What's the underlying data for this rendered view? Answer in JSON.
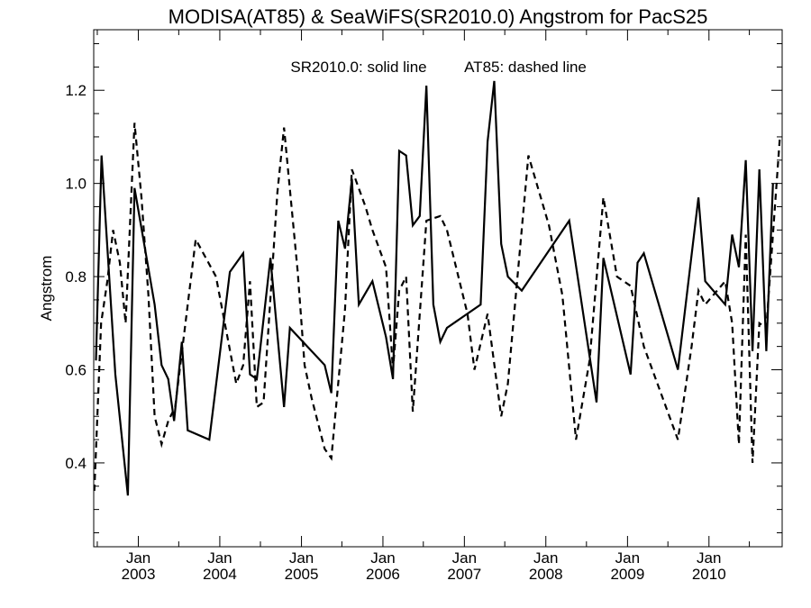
{
  "chart_data": {
    "type": "line",
    "title": "MODISA(AT85) & SeaWiFS(SR2010.0)  Angstrom for PacS25",
    "xlabel": "",
    "ylabel": "Angstrom",
    "annotation_solid": "SR2010.0: solid line",
    "annotation_dashed": "AT85: dashed line",
    "xlim": [
      "2002-06-15",
      "2010-11-25"
    ],
    "ylim": [
      0.22,
      1.33
    ],
    "grid": false,
    "x_ticks": [
      {
        "month": "Jan",
        "year": "2003",
        "date": "2003-01-01"
      },
      {
        "month": "Jan",
        "year": "2004",
        "date": "2004-01-01"
      },
      {
        "month": "Jan",
        "year": "2005",
        "date": "2005-01-01"
      },
      {
        "month": "Jan",
        "year": "2006",
        "date": "2006-01-01"
      },
      {
        "month": "Jan",
        "year": "2007",
        "date": "2007-01-01"
      },
      {
        "month": "Jan",
        "year": "2008",
        "date": "2008-01-01"
      },
      {
        "month": "Jan",
        "year": "2009",
        "date": "2009-01-01"
      },
      {
        "month": "Jan",
        "year": "2010",
        "date": "2010-01-01"
      }
    ],
    "y_ticks": [
      "0.4",
      "0.6",
      "0.8",
      "1.0",
      "1.2"
    ],
    "series": [
      {
        "name": "SR2010.0",
        "style": "solid",
        "points": [
          [
            "2002-06-25",
            0.62
          ],
          [
            "2002-07-20",
            1.06
          ],
          [
            "2002-09-20",
            0.59
          ],
          [
            "2002-11-15",
            0.33
          ],
          [
            "2002-12-15",
            0.99
          ],
          [
            "2003-03-15",
            0.74
          ],
          [
            "2003-04-15",
            0.61
          ],
          [
            "2003-05-15",
            0.58
          ],
          [
            "2003-06-10",
            0.49
          ],
          [
            "2003-07-15",
            0.66
          ],
          [
            "2003-08-10",
            0.47
          ],
          [
            "2003-11-15",
            0.45
          ],
          [
            "2004-02-15",
            0.81
          ],
          [
            "2004-04-15",
            0.85
          ],
          [
            "2004-05-15",
            0.59
          ],
          [
            "2004-06-15",
            0.58
          ],
          [
            "2004-08-15",
            0.84
          ],
          [
            "2004-10-15",
            0.52
          ],
          [
            "2004-11-10",
            0.69
          ],
          [
            "2005-04-15",
            0.61
          ],
          [
            "2005-05-15",
            0.55
          ],
          [
            "2005-06-15",
            0.92
          ],
          [
            "2005-07-15",
            0.86
          ],
          [
            "2005-08-15",
            1.01
          ],
          [
            "2005-09-15",
            0.74
          ],
          [
            "2005-11-15",
            0.79
          ],
          [
            "2006-01-15",
            0.67
          ],
          [
            "2006-02-15",
            0.58
          ],
          [
            "2006-03-15",
            1.07
          ],
          [
            "2006-04-15",
            1.06
          ],
          [
            "2006-05-15",
            0.91
          ],
          [
            "2006-06-15",
            0.93
          ],
          [
            "2006-07-15",
            1.21
          ],
          [
            "2006-08-15",
            0.74
          ],
          [
            "2006-09-15",
            0.66
          ],
          [
            "2006-10-15",
            0.69
          ],
          [
            "2007-03-15",
            0.74
          ],
          [
            "2007-04-15",
            1.09
          ],
          [
            "2007-05-15",
            1.22
          ],
          [
            "2007-06-15",
            0.87
          ],
          [
            "2007-07-15",
            0.8
          ],
          [
            "2007-09-15",
            0.77
          ],
          [
            "2008-04-15",
            0.92
          ],
          [
            "2008-08-15",
            0.53
          ],
          [
            "2008-09-15",
            0.84
          ],
          [
            "2009-01-15",
            0.59
          ],
          [
            "2009-02-15",
            0.83
          ],
          [
            "2009-03-15",
            0.85
          ],
          [
            "2009-08-15",
            0.6
          ],
          [
            "2009-11-15",
            0.97
          ],
          [
            "2009-12-15",
            0.79
          ],
          [
            "2010-03-15",
            0.74
          ],
          [
            "2010-04-15",
            0.89
          ],
          [
            "2010-05-15",
            0.82
          ],
          [
            "2010-06-15",
            1.05
          ],
          [
            "2010-07-15",
            0.64
          ],
          [
            "2010-08-15",
            1.03
          ],
          [
            "2010-09-15",
            0.64
          ],
          [
            "2010-10-15",
            1.0
          ]
        ]
      },
      {
        "name": "AT85",
        "style": "dashed",
        "points": [
          [
            "2002-06-18",
            0.34
          ],
          [
            "2002-07-18",
            0.7
          ],
          [
            "2002-08-15",
            0.79
          ],
          [
            "2002-09-10",
            0.9
          ],
          [
            "2002-10-10",
            0.83
          ],
          [
            "2002-11-05",
            0.7
          ],
          [
            "2002-12-15",
            1.13
          ],
          [
            "2003-01-15",
            0.97
          ],
          [
            "2003-02-15",
            0.76
          ],
          [
            "2003-03-15",
            0.5
          ],
          [
            "2003-04-15",
            0.44
          ],
          [
            "2003-05-15",
            0.49
          ],
          [
            "2003-06-15",
            0.52
          ],
          [
            "2003-09-15",
            0.88
          ],
          [
            "2003-12-15",
            0.8
          ],
          [
            "2004-03-15",
            0.57
          ],
          [
            "2004-04-15",
            0.61
          ],
          [
            "2004-05-15",
            0.79
          ],
          [
            "2004-06-15",
            0.52
          ],
          [
            "2004-07-15",
            0.53
          ],
          [
            "2004-09-15",
            0.98
          ],
          [
            "2004-10-15",
            1.12
          ],
          [
            "2004-12-15",
            0.81
          ],
          [
            "2005-01-15",
            0.61
          ],
          [
            "2005-02-15",
            0.54
          ],
          [
            "2005-04-15",
            0.43
          ],
          [
            "2005-05-15",
            0.41
          ],
          [
            "2005-07-15",
            0.73
          ],
          [
            "2005-08-15",
            1.03
          ],
          [
            "2005-10-15",
            0.95
          ],
          [
            "2005-11-15",
            0.9
          ],
          [
            "2006-01-15",
            0.82
          ],
          [
            "2006-02-15",
            0.6
          ],
          [
            "2006-03-15",
            0.77
          ],
          [
            "2006-04-15",
            0.8
          ],
          [
            "2006-05-15",
            0.51
          ],
          [
            "2006-07-15",
            0.92
          ],
          [
            "2006-09-15",
            0.93
          ],
          [
            "2006-10-15",
            0.9
          ],
          [
            "2007-01-15",
            0.72
          ],
          [
            "2007-02-15",
            0.6
          ],
          [
            "2007-04-15",
            0.72
          ],
          [
            "2007-06-15",
            0.5
          ],
          [
            "2007-07-15",
            0.57
          ],
          [
            "2007-10-15",
            1.06
          ],
          [
            "2008-01-15",
            0.91
          ],
          [
            "2008-03-15",
            0.76
          ],
          [
            "2008-05-15",
            0.45
          ],
          [
            "2008-07-15",
            0.62
          ],
          [
            "2008-09-15",
            0.97
          ],
          [
            "2008-11-15",
            0.8
          ],
          [
            "2009-01-15",
            0.78
          ],
          [
            "2009-03-15",
            0.65
          ],
          [
            "2009-08-15",
            0.45
          ],
          [
            "2009-10-15",
            0.65
          ],
          [
            "2009-11-15",
            0.77
          ],
          [
            "2009-12-15",
            0.74
          ],
          [
            "2010-03-15",
            0.79
          ],
          [
            "2010-04-15",
            0.7
          ],
          [
            "2010-05-15",
            0.44
          ],
          [
            "2010-06-15",
            0.89
          ],
          [
            "2010-07-15",
            0.4
          ],
          [
            "2010-08-15",
            0.7
          ],
          [
            "2010-09-15",
            0.69
          ],
          [
            "2010-11-15",
            1.1
          ]
        ]
      }
    ]
  }
}
